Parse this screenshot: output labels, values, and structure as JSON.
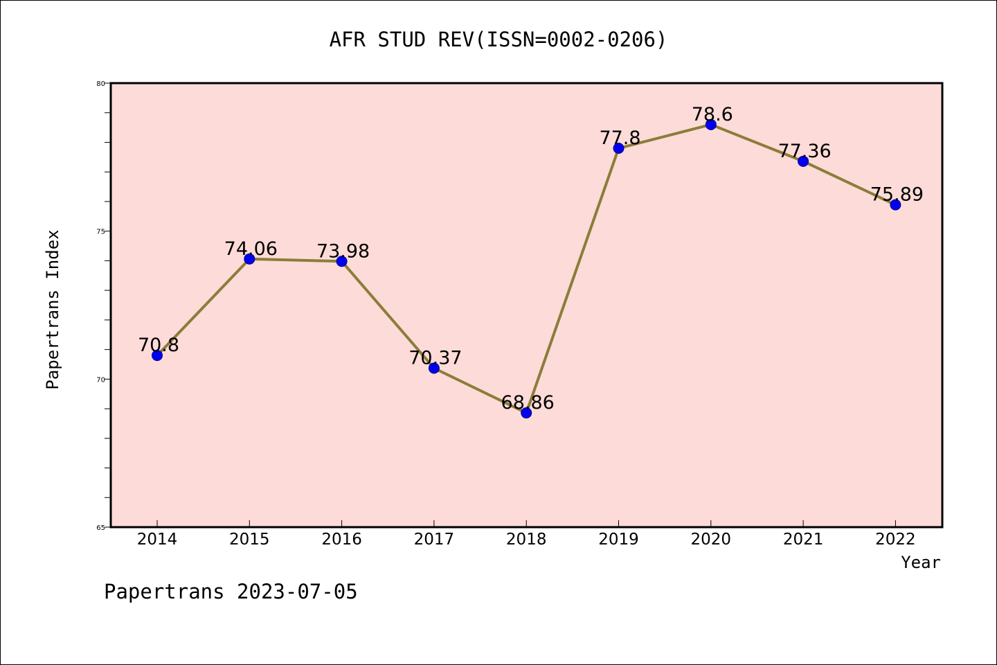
{
  "chart_data": {
    "type": "line",
    "title": "AFR STUD REV(ISSN=0002-0206)",
    "xlabel": "Year",
    "ylabel": "Papertrans Index",
    "categories": [
      "2014",
      "2015",
      "2016",
      "2017",
      "2018",
      "2019",
      "2020",
      "2021",
      "2022"
    ],
    "series": [
      {
        "values": [
          70.8,
          74.06,
          73.98,
          70.37,
          68.86,
          77.8,
          78.6,
          77.36,
          75.89
        ],
        "labels": [
          "70.8",
          "74.06",
          "73.98",
          "70.37",
          "68.86",
          "77.8",
          "78.6",
          "77.36",
          "75.89"
        ],
        "line_color": "#8b7d3a",
        "marker_color": "#0000ee"
      }
    ],
    "ylim": [
      65,
      80
    ],
    "yticks": [
      65,
      70,
      75,
      80
    ],
    "ytick_labels": [
      "65",
      "70",
      "75",
      "80"
    ],
    "minor_ytick_step": 1,
    "plot_background": "#fddbd8",
    "grid": false,
    "legend": "none"
  },
  "footer": "Papertrans 2023-07-05"
}
